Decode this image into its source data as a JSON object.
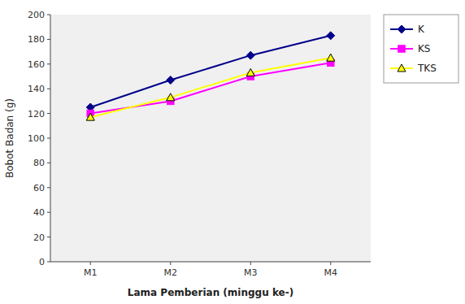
{
  "chart_data": {
    "type": "line",
    "xlabel": "Lama Pemberian (minggu ke-)",
    "ylabel": "Bobot Badan (g)",
    "categories": [
      "M1",
      "M2",
      "M3",
      "M4"
    ],
    "series": [
      {
        "name": "K",
        "color": "#00008B",
        "marker": "diamond",
        "values": [
          125,
          147,
          167,
          183
        ]
      },
      {
        "name": "KS",
        "color": "#FF00FF",
        "marker": "square",
        "values": [
          120,
          130,
          150,
          161
        ]
      },
      {
        "name": "TKS",
        "color": "#FFFF00",
        "marker": "triangle",
        "values": [
          117,
          133,
          153,
          165
        ]
      }
    ],
    "ylim": [
      0,
      200
    ],
    "yticks": [
      0,
      20,
      40,
      60,
      80,
      100,
      120,
      140,
      160,
      180,
      200
    ],
    "grid": false,
    "legend": "right"
  }
}
